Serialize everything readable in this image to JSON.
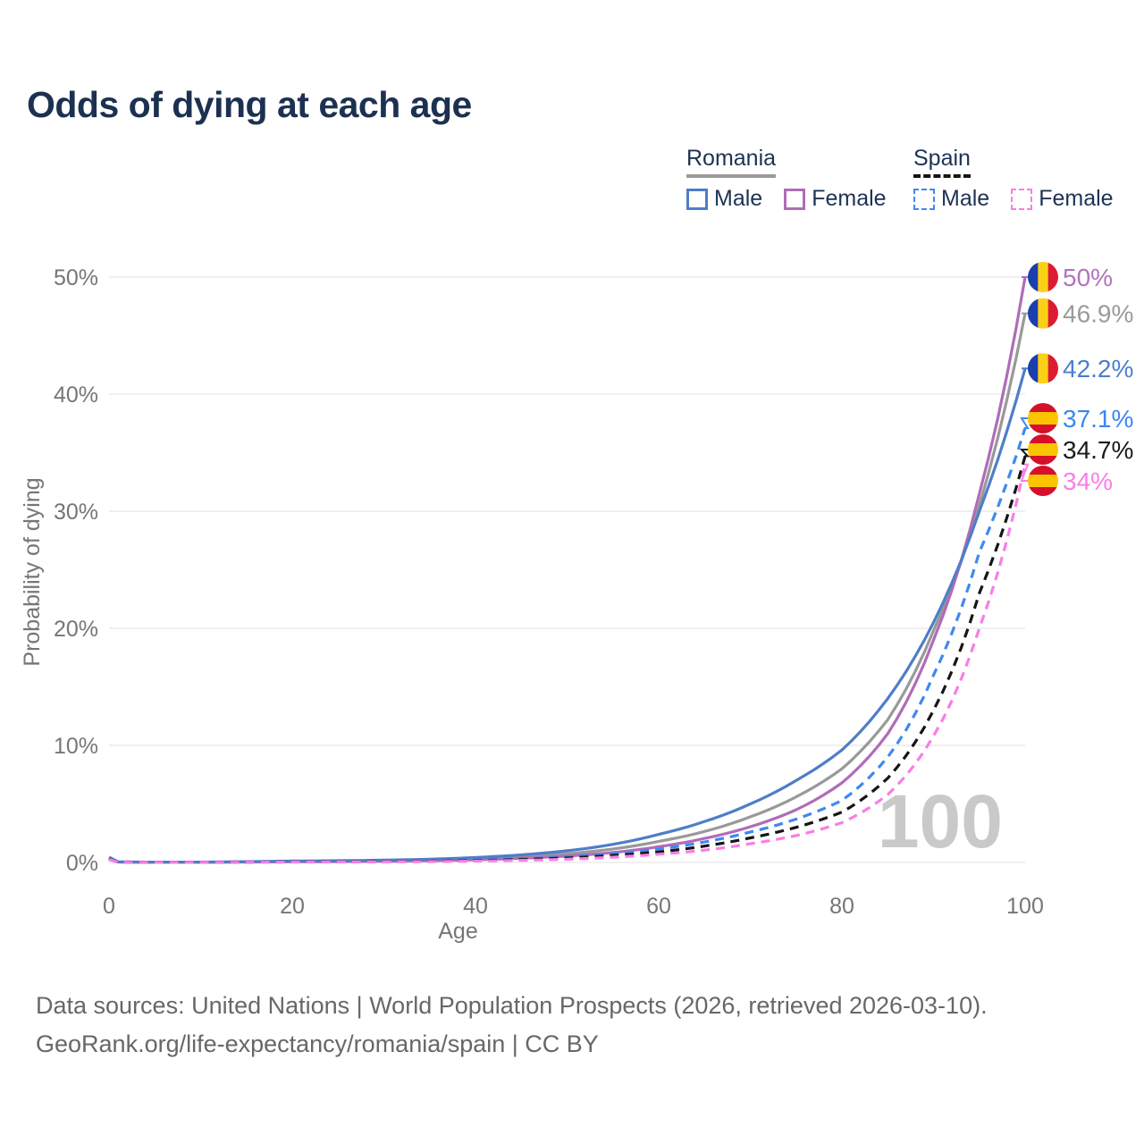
{
  "title": "Odds of dying at each age",
  "watermark": "100",
  "colors": {
    "title_text": "#1c3151",
    "legend_text": "#1d3354",
    "axis_text": "#767676",
    "grid": "#ececec",
    "watermark": "#c9c9c9",
    "footer_text": "#676767"
  },
  "legend": {
    "groups": [
      {
        "country": "Romania",
        "line_style": "solid",
        "underline_color": "#9a9a9a",
        "items": [
          {
            "label": "Male",
            "color": "#4f7dc8",
            "dashed": false
          },
          {
            "label": "Female",
            "color": "#b06cb8",
            "dashed": false
          }
        ]
      },
      {
        "country": "Spain",
        "line_style": "dashed",
        "underline_color": "#141414",
        "items": [
          {
            "label": "Male",
            "color": "#3f88f2",
            "dashed": true
          },
          {
            "label": "Female",
            "color": "#fa7de6",
            "dashed": true
          }
        ]
      }
    ]
  },
  "chart_data": {
    "type": "line",
    "title": "Odds of dying at each age",
    "xlabel": "Age",
    "ylabel": "Probability of dying",
    "xlim": [
      0,
      100
    ],
    "ylim": [
      0,
      50
    ],
    "x_ticks": [
      0,
      20,
      40,
      60,
      80,
      100
    ],
    "y_tick_values": [
      0,
      10,
      20,
      30,
      40,
      50
    ],
    "y_tick_labels": [
      "0%",
      "10%",
      "20%",
      "30%",
      "40%",
      "50%"
    ],
    "grid": "horizontal",
    "legend_position": "top-right",
    "watermark": "100",
    "flags": {
      "romania": [
        "#1b3fae",
        "#fdd018",
        "#dc1c32"
      ],
      "spain": [
        "#d60f2b",
        "#fbc400",
        "#d60f2b"
      ]
    },
    "ages": [
      0,
      1,
      5,
      10,
      15,
      20,
      25,
      30,
      35,
      40,
      45,
      50,
      55,
      60,
      65,
      70,
      75,
      80,
      85,
      90,
      95,
      100
    ],
    "series": [
      {
        "name": "Romania Both sexes",
        "country": "Romania",
        "sex": "both",
        "color": "#999999",
        "label_color": "#9a9a9a",
        "dashed": false,
        "end_label": "46.9%",
        "flag": "romania",
        "values": [
          0.4,
          0.045,
          0.025,
          0.025,
          0.055,
          0.09,
          0.11,
          0.15,
          0.21,
          0.31,
          0.48,
          0.75,
          1.15,
          1.8,
          2.65,
          3.9,
          5.6,
          8.0,
          12.2,
          19.8,
          30.5,
          46.9
        ]
      },
      {
        "name": "Romania Female",
        "country": "Romania",
        "sex": "female",
        "color": "#b06cb8",
        "label_color": "#b173bb",
        "dashed": false,
        "end_label": "50%",
        "flag": "romania",
        "values": [
          0.35,
          0.04,
          0.02,
          0.02,
          0.04,
          0.06,
          0.08,
          0.1,
          0.15,
          0.23,
          0.36,
          0.55,
          0.85,
          1.35,
          2.05,
          3.05,
          4.5,
          6.8,
          11.0,
          19.0,
          31.5,
          50.0
        ]
      },
      {
        "name": "Romania Male",
        "country": "Romania",
        "sex": "male",
        "color": "#4f7dc8",
        "label_color": "#4c7ecd",
        "dashed": false,
        "end_label": "42.2%",
        "flag": "romania",
        "values": [
          0.45,
          0.05,
          0.03,
          0.03,
          0.07,
          0.12,
          0.15,
          0.2,
          0.28,
          0.42,
          0.65,
          1.0,
          1.55,
          2.4,
          3.5,
          5.0,
          7.0,
          9.6,
          14.0,
          20.5,
          30.0,
          42.2
        ]
      },
      {
        "name": "Spain Male",
        "country": "Spain",
        "sex": "male",
        "color": "#3f88f2",
        "label_color": "#3c86f0",
        "dashed": true,
        "end_label": "37.1%",
        "flag": "spain",
        "values": [
          0.3,
          0.03,
          0.015,
          0.015,
          0.035,
          0.06,
          0.08,
          0.1,
          0.14,
          0.2,
          0.31,
          0.48,
          0.75,
          1.15,
          1.75,
          2.6,
          3.7,
          5.3,
          9.0,
          16.0,
          26.5,
          37.1
        ]
      },
      {
        "name": "Spain Both sexes",
        "country": "Spain",
        "sex": "both",
        "color": "#151515",
        "label_color": "#1a1a1a",
        "dashed": true,
        "end_label": "34.7%",
        "flag": "spain",
        "values": [
          0.28,
          0.025,
          0.012,
          0.012,
          0.03,
          0.05,
          0.06,
          0.08,
          0.11,
          0.16,
          0.25,
          0.38,
          0.6,
          0.9,
          1.4,
          2.1,
          3.0,
          4.3,
          7.2,
          13.0,
          23.0,
          34.7
        ]
      },
      {
        "name": "Spain Female",
        "country": "Spain",
        "sex": "female",
        "color": "#fa7de6",
        "label_color": "#fa7de6",
        "dashed": true,
        "end_label": "34%",
        "flag": "spain",
        "values": [
          0.25,
          0.02,
          0.01,
          0.01,
          0.02,
          0.035,
          0.045,
          0.06,
          0.08,
          0.12,
          0.18,
          0.28,
          0.45,
          0.7,
          1.05,
          1.6,
          2.3,
          3.4,
          5.8,
          10.8,
          20.0,
          34.0
        ]
      }
    ]
  },
  "footer": {
    "line1": "Data sources: United Nations | World Population Prospects (2026, retrieved 2026-03-10).",
    "line2": "GeoRank.org/life-expectancy/romania/spain | CC BY"
  }
}
